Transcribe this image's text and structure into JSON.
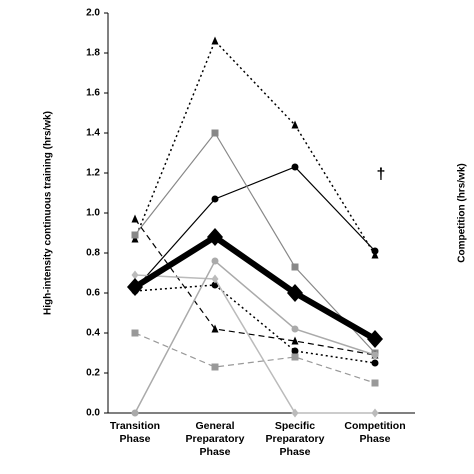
{
  "chart_data": {
    "type": "line",
    "y_label": "High-intensity continuous training (hrs/wk)",
    "y2_label": "Competition (hrs/wk)",
    "annotation": "†",
    "categories": [
      "Transition Phase",
      "General Preparatory Phase",
      "Specific Preparatory Phase",
      "Competition Phase"
    ],
    "ylim": [
      0,
      2
    ],
    "yticks": [
      {
        "value": 0,
        "label": "0.0"
      },
      0.2,
      0.4,
      0.6,
      0.8,
      {
        "value": 1,
        "label": "1.0"
      },
      1.2,
      1.4,
      1.6,
      1.8,
      {
        "value": 2,
        "label": "2.0"
      }
    ],
    "grid": false,
    "series": [
      {
        "color": "#000000",
        "dash": "dotted",
        "marker": "triangle",
        "width": 1.5,
        "values": [
          0.87,
          1.86,
          1.44,
          0.79
        ]
      },
      {
        "color": "#000000",
        "dash": "solid",
        "marker": "circle",
        "width": 1.2,
        "values": [
          0.62,
          1.07,
          1.23,
          0.81
        ]
      },
      {
        "color": "#888888",
        "dash": "solid",
        "marker": "square",
        "width": 1.2,
        "values": [
          0.89,
          1.4,
          0.73,
          0.3
        ]
      },
      {
        "color": "#000000",
        "dash": "dashed",
        "marker": "triangle",
        "width": 1.2,
        "values": [
          0.97,
          0.42,
          0.36,
          0.29
        ]
      },
      {
        "color": "#000000",
        "dash": "dotted",
        "marker": "circle",
        "width": 1.5,
        "values": [
          0.61,
          0.64,
          0.31,
          0.25
        ]
      },
      {
        "color": "#bbbbbb",
        "dash": "solid",
        "marker": "diamond",
        "width": 1.5,
        "values": [
          0.69,
          0.67,
          0.0,
          0.0
        ]
      },
      {
        "color": "#aaaaaa",
        "dash": "solid",
        "marker": "circle",
        "width": 1.5,
        "values": [
          0.0,
          0.76,
          0.42,
          0.29
        ]
      },
      {
        "color": "#999999",
        "dash": "dashed",
        "marker": "square",
        "width": 1.2,
        "values": [
          0.4,
          0.23,
          0.28,
          0.15
        ]
      },
      {
        "color": "#000000",
        "dash": "solid",
        "marker": "diamond",
        "width": 6,
        "values": [
          0.63,
          0.88,
          0.6,
          0.37
        ]
      }
    ]
  }
}
